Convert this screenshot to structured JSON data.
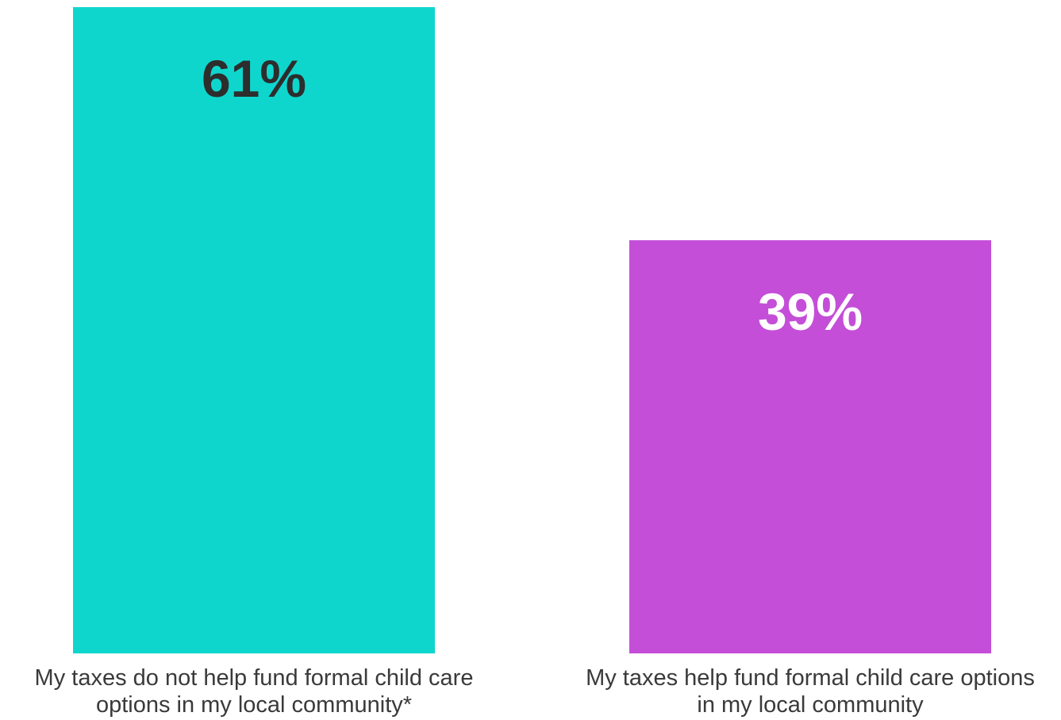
{
  "chart_data": {
    "type": "bar",
    "categories": [
      [
        "My taxes do not help fund formal child care",
        "options in my local community*"
      ],
      [
        "My taxes help fund formal child care options",
        "in my local community"
      ]
    ],
    "values": [
      61,
      39
    ],
    "value_labels": [
      "61%",
      "39%"
    ],
    "colors": [
      "#0fd6cd",
      "#c44ed8"
    ],
    "value_label_colors": [
      "#2d2d2d",
      "#ffffff"
    ],
    "ylim": [
      0,
      61
    ],
    "grid": false,
    "legend": "none"
  }
}
